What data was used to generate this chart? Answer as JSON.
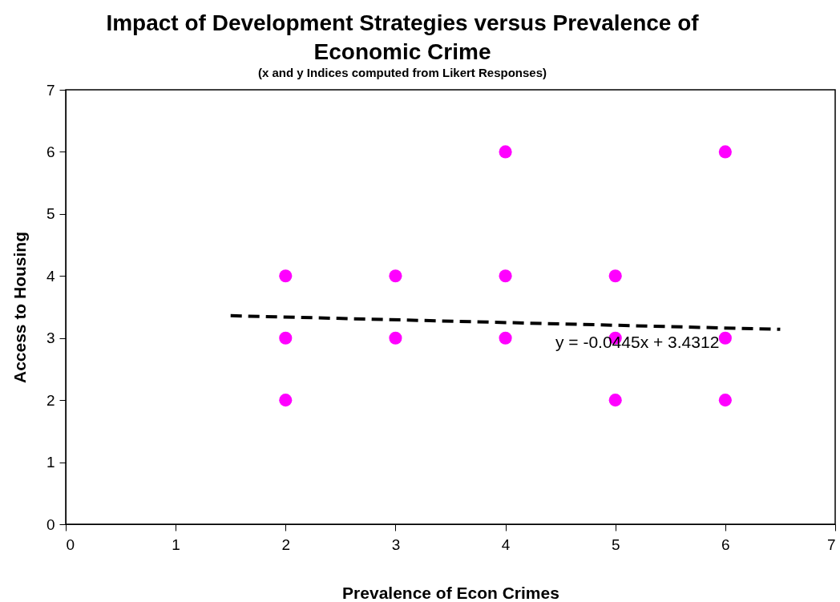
{
  "chart_data": {
    "type": "scatter",
    "title": "Impact of Development Strategies versus Prevalence of Economic Crime",
    "subtitle": "(x and y Indices computed from Likert Responses)",
    "xlabel": "Prevalence of Econ Crimes",
    "ylabel": "Access to Housing",
    "xlim": [
      0,
      7
    ],
    "xticks": [
      0,
      1,
      2,
      3,
      4,
      5,
      6,
      7
    ],
    "ylim": [
      0,
      7
    ],
    "yticks": [
      0,
      1,
      2,
      3,
      4,
      5,
      6,
      7
    ],
    "grid": false,
    "marker": "circle",
    "series": [
      {
        "color": "#ff00ff",
        "x": [
          2,
          2,
          2,
          3,
          3,
          4,
          4,
          4,
          5,
          5,
          5,
          6,
          6,
          6
        ],
        "values": [
          4,
          3,
          2,
          4,
          3,
          6,
          4,
          3,
          4,
          3,
          2,
          6,
          3,
          2
        ]
      },
      {
        "type": "line",
        "color": "#000000",
        "line_style": "dashed",
        "marker": "none",
        "x": [
          1.5,
          6.5
        ],
        "values": [
          3.36,
          3.14
        ]
      }
    ],
    "annotations": [
      "y = -0.0445x + 3.4312"
    ]
  }
}
